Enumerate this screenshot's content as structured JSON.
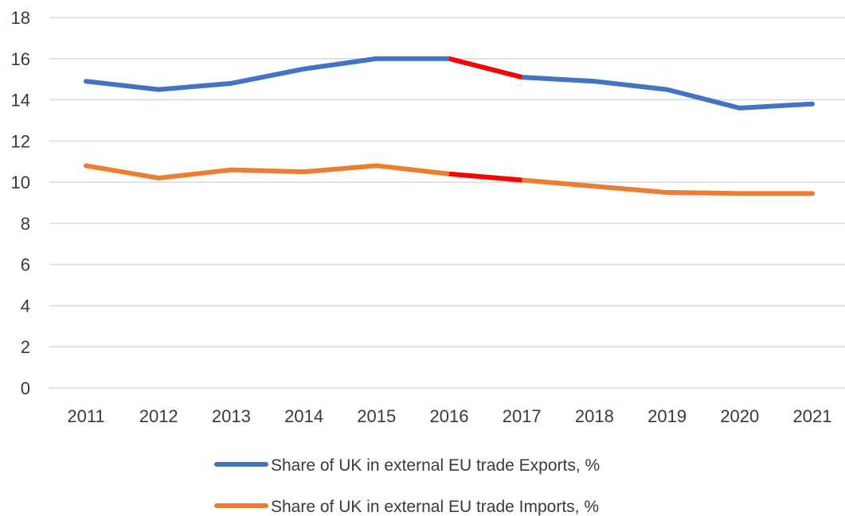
{
  "chart_data": {
    "type": "line",
    "categories": [
      "2011",
      "2012",
      "2013",
      "2014",
      "2015",
      "2016",
      "2017",
      "2018",
      "2019",
      "2020",
      "2021"
    ],
    "ylim": [
      0,
      18
    ],
    "yticks": [
      "0",
      "2",
      "4",
      "6",
      "8",
      "10",
      "12",
      "14",
      "16",
      "18"
    ],
    "grid": true,
    "legend_position": "bottom",
    "highlight_segment": {
      "from": "2016",
      "to": "2017",
      "color": "#ff0000"
    },
    "series": [
      {
        "name": "Share of UK in external EU trade Exports, %",
        "color": "#4472c4",
        "values": [
          14.9,
          14.5,
          14.8,
          15.5,
          16.0,
          16.0,
          15.1,
          14.9,
          14.5,
          13.6,
          13.8
        ]
      },
      {
        "name": "Share of UK in external EU trade Imports, %",
        "color": "#ed7d31",
        "values": [
          10.8,
          10.2,
          10.6,
          10.5,
          10.8,
          10.4,
          10.1,
          9.8,
          9.5,
          9.45,
          9.45
        ]
      }
    ]
  }
}
